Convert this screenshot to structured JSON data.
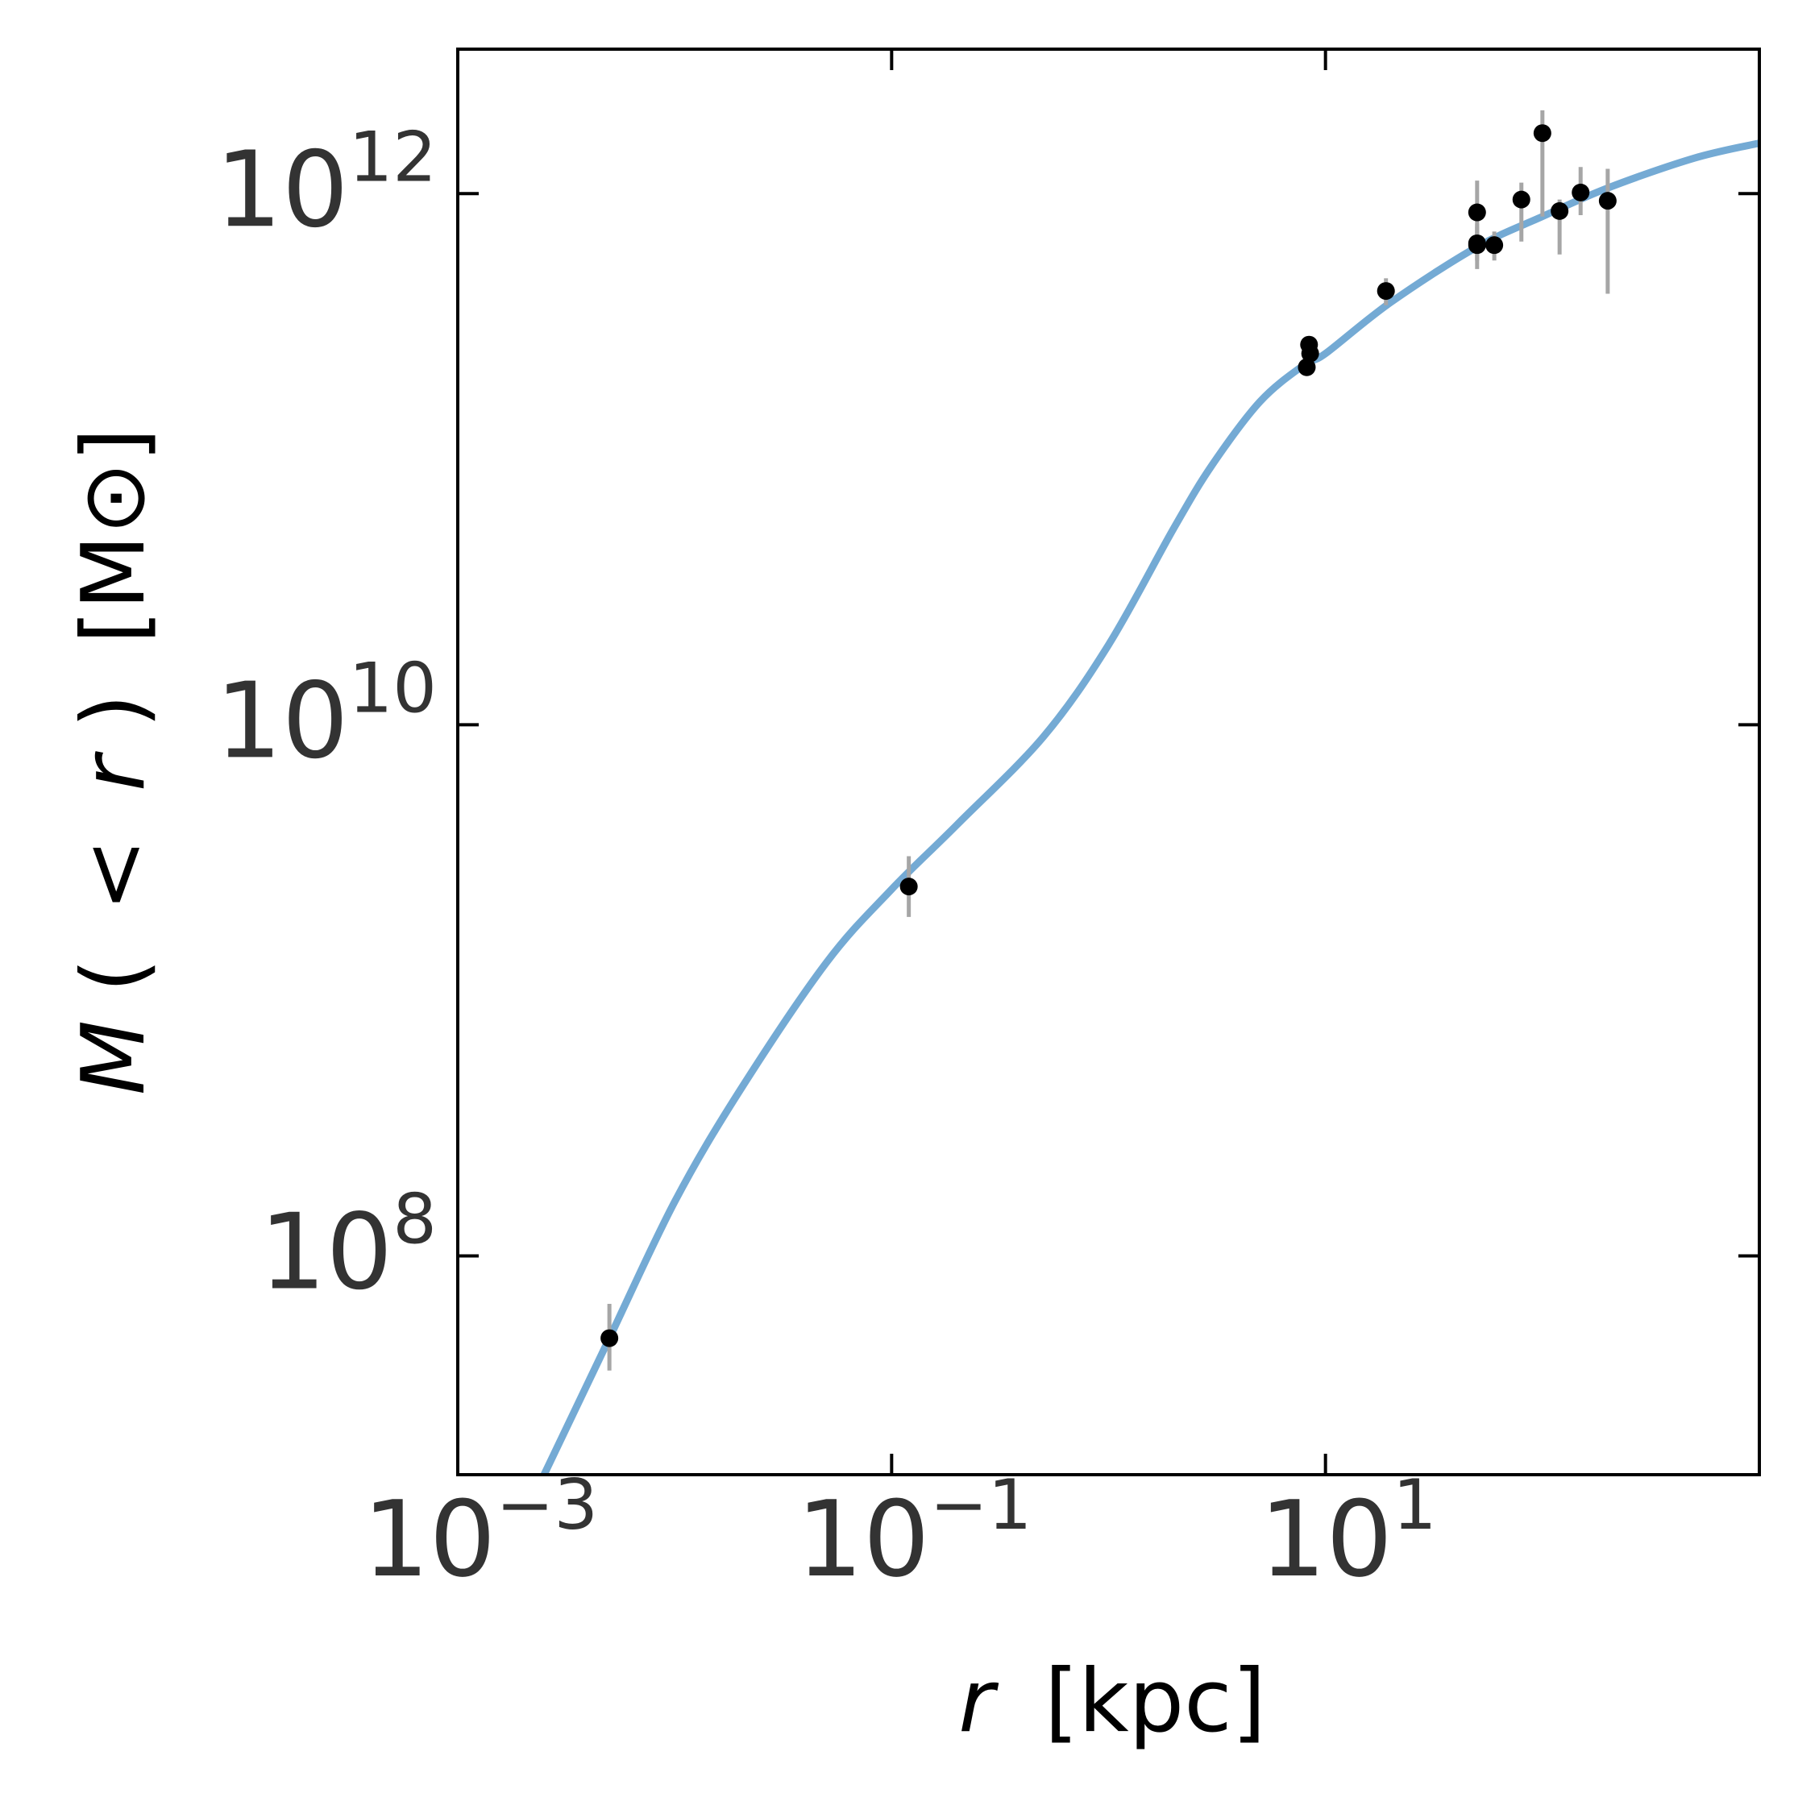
{
  "chart_data": {
    "type": "scatter",
    "title": "",
    "xlabel": {
      "var": "r",
      "unit": "[kpc]"
    },
    "ylabel": {
      "var": "M",
      "open": "(",
      "lt": "<",
      "inner": "r",
      "close": ")",
      "unit": "[M⊙]"
    },
    "x_scale": "log",
    "y_scale": "log",
    "xlim": [
      0.001,
      1000
    ],
    "ylim": [
      15000000,
      3500000000000
    ],
    "x_ticks": [
      {
        "value": 0.001,
        "base": "10",
        "exp": "−3"
      },
      {
        "value": 0.1,
        "base": "10",
        "exp": "−1"
      },
      {
        "value": 10,
        "base": "10",
        "exp": "1"
      }
    ],
    "y_ticks": [
      {
        "value": 100000000,
        "base": "10",
        "exp": "8"
      },
      {
        "value": 10000000000,
        "base": "10",
        "exp": "10"
      },
      {
        "value": 1000000000000,
        "base": "10",
        "exp": "12"
      }
    ],
    "grid": false,
    "legend": "none",
    "colors": {
      "model_curve": "#74aad4",
      "points": "#000000",
      "error_bars": "#a6a6a6",
      "frame": "#000000"
    },
    "series": [
      {
        "kind": "line",
        "x": [
          0.0025,
          0.005,
          0.01,
          0.02,
          0.05,
          0.1,
          0.2,
          0.5,
          1,
          2,
          3,
          5,
          8,
          10,
          20,
          50,
          100,
          200,
          500,
          1000
        ],
        "y": [
          15000000,
          49000000,
          160000000,
          420000000,
          1270000000,
          2400000000,
          4200000000,
          9000000000,
          20000000000,
          55000000000,
          95000000000,
          165000000000,
          227000000000,
          250000000000,
          390000000000,
          630000000000,
          820000000000,
          1050000000000,
          1360000000000,
          1550000000000
        ]
      },
      {
        "kind": "points_with_errors",
        "points": [
          {
            "x": 0.005,
            "y": 49000000,
            "ylo": 37000000,
            "yhi": 66000000
          },
          {
            "x": 0.12,
            "y": 2460000000,
            "ylo": 1890000000,
            "yhi": 3200000000
          },
          {
            "x": 8.4,
            "y": 270000000000,
            "ylo": 255000000000,
            "yhi": 285000000000
          },
          {
            "x": 8.5,
            "y": 250000000000,
            "ylo": 240000000000,
            "yhi": 262000000000
          },
          {
            "x": 8.2,
            "y": 222000000000,
            "ylo": 212000000000,
            "yhi": 233000000000
          },
          {
            "x": 19,
            "y": 430000000000,
            "ylo": 380000000000,
            "yhi": 480000000000
          },
          {
            "x": 50,
            "y": 650000000000,
            "ylo": 560000000000,
            "yhi": 770000000000
          },
          {
            "x": 50,
            "y": 850000000000,
            "ylo": 620000000000,
            "yhi": 1120000000000
          },
          {
            "x": 50,
            "y": 640000000000,
            "ylo": 520000000000,
            "yhi": 750000000000
          },
          {
            "x": 60,
            "y": 640000000000,
            "ylo": 560000000000,
            "yhi": 720000000000
          },
          {
            "x": 80,
            "y": 950000000000,
            "ylo": 660000000000,
            "yhi": 1100000000000
          },
          {
            "x": 100,
            "y": 1690000000000,
            "ylo": 820000000000,
            "yhi": 2060000000000
          },
          {
            "x": 120,
            "y": 860000000000,
            "ylo": 590000000000,
            "yhi": 950000000000
          },
          {
            "x": 150,
            "y": 1010000000000,
            "ylo": 830000000000,
            "yhi": 1260000000000
          },
          {
            "x": 200,
            "y": 940000000000,
            "ylo": 420000000000,
            "yhi": 1240000000000
          }
        ]
      }
    ]
  }
}
